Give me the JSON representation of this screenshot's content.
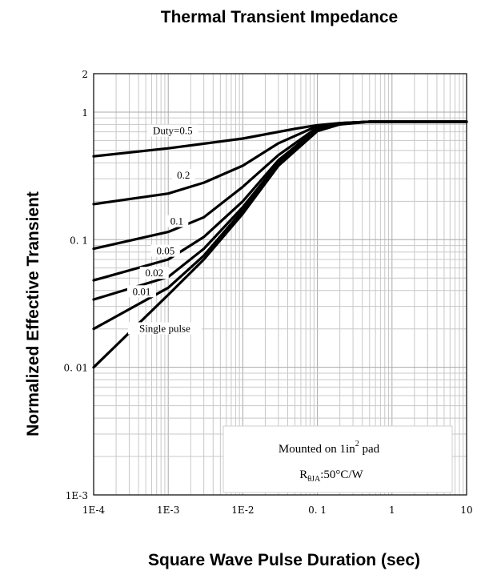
{
  "chart_data": {
    "type": "line",
    "title": "Thermal Transient Impedance",
    "xlabel": "Square Wave Pulse Duration (sec)",
    "ylabel": "Normalized Effective Transient",
    "x_scale": "log",
    "y_scale": "log",
    "xlim": [
      0.0001,
      10
    ],
    "ylim": [
      0.001,
      2
    ],
    "x_ticks": [
      "1E-4",
      "1E-3",
      "1E-2",
      "0. 1",
      "1",
      "10"
    ],
    "y_ticks": [
      "1E-3",
      "0. 01",
      "0. 1",
      "1",
      "2"
    ],
    "grid": true,
    "annotation": {
      "line1_prefix": "Mounted on 1in",
      "line1_sup": "2",
      "line1_suffix": " pad",
      "line2_main": "R",
      "line2_sub": "θJA",
      "line2_rest": ":50°C/W"
    },
    "series": [
      {
        "name": "Duty=0.5",
        "x": [
          0.0001,
          0.001,
          0.01,
          0.05,
          0.1,
          0.2,
          0.5,
          1,
          10
        ],
        "y": [
          0.45,
          0.52,
          0.62,
          0.74,
          0.79,
          0.82,
          0.84,
          0.84,
          0.84
        ]
      },
      {
        "name": "0.2",
        "x": [
          0.0001,
          0.001,
          0.003,
          0.01,
          0.03,
          0.1,
          0.2,
          0.5,
          1,
          10
        ],
        "y": [
          0.19,
          0.23,
          0.28,
          0.38,
          0.57,
          0.78,
          0.82,
          0.84,
          0.84,
          0.84
        ]
      },
      {
        "name": "0.1",
        "x": [
          0.0001,
          0.001,
          0.003,
          0.01,
          0.03,
          0.1,
          0.2,
          0.5,
          1,
          10
        ],
        "y": [
          0.085,
          0.115,
          0.15,
          0.26,
          0.46,
          0.76,
          0.82,
          0.84,
          0.84,
          0.84
        ]
      },
      {
        "name": "0.05",
        "x": [
          0.0001,
          0.001,
          0.003,
          0.01,
          0.03,
          0.1,
          0.2,
          0.5,
          1,
          10
        ],
        "y": [
          0.048,
          0.07,
          0.105,
          0.2,
          0.42,
          0.74,
          0.81,
          0.84,
          0.84,
          0.84
        ]
      },
      {
        "name": "0.02",
        "x": [
          0.0001,
          0.001,
          0.003,
          0.01,
          0.03,
          0.1,
          0.2,
          0.5,
          1,
          10
        ],
        "y": [
          0.034,
          0.051,
          0.085,
          0.18,
          0.4,
          0.73,
          0.81,
          0.84,
          0.84,
          0.84
        ]
      },
      {
        "name": "0.01",
        "x": [
          0.0001,
          0.001,
          0.003,
          0.01,
          0.03,
          0.1,
          0.2,
          0.5,
          1,
          10
        ],
        "y": [
          0.02,
          0.042,
          0.075,
          0.17,
          0.39,
          0.72,
          0.81,
          0.84,
          0.84,
          0.84
        ]
      },
      {
        "name": "Single pulse",
        "x": [
          0.0001,
          0.001,
          0.003,
          0.01,
          0.03,
          0.1,
          0.2,
          0.5,
          1,
          10
        ],
        "y": [
          0.01,
          0.037,
          0.07,
          0.16,
          0.38,
          0.71,
          0.8,
          0.84,
          0.84,
          0.84
        ]
      }
    ]
  }
}
